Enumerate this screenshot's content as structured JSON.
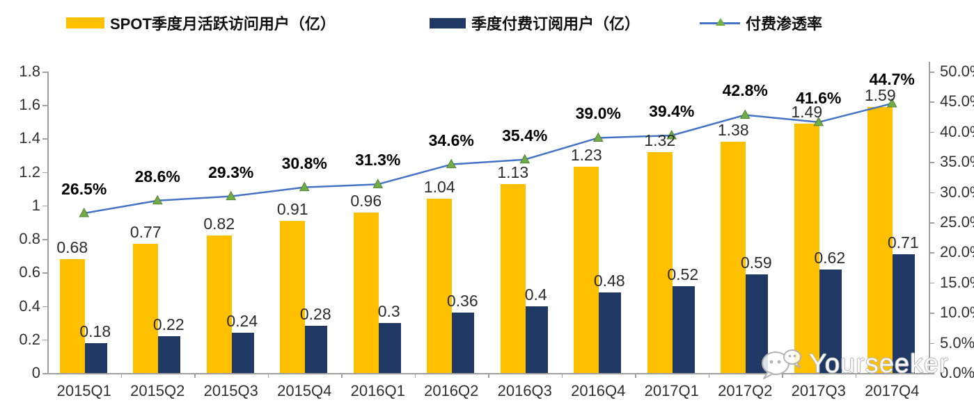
{
  "legend": {
    "mau_label": "SPOT季度月活跃访问用户（亿）",
    "subs_label": "季度付费订阅用户（亿）",
    "penetration_label": "付费渗透率"
  },
  "colors": {
    "mau_bar": "#FFC000",
    "subs_bar": "#1F3864",
    "line": "#4472C4",
    "marker_fill": "#70AD47",
    "marker_stroke": "#538135",
    "axis": "#9e9e9e"
  },
  "watermark": {
    "text": "Yourseeker",
    "icon": "wechat-icon"
  },
  "chart_data": {
    "type": "bar",
    "subtype": "combo-bar-line",
    "categories": [
      "2015Q1",
      "2015Q2",
      "2015Q3",
      "2015Q4",
      "2016Q1",
      "2016Q2",
      "2016Q3",
      "2016Q4",
      "2017Q1",
      "2017Q2",
      "2017Q3",
      "2017Q4"
    ],
    "series": [
      {
        "name": "SPOT季度月活跃访问用户（亿）",
        "type": "bar",
        "axis": "left",
        "values": [
          0.68,
          0.77,
          0.82,
          0.91,
          0.96,
          1.04,
          1.13,
          1.23,
          1.32,
          1.38,
          1.49,
          1.59
        ],
        "labels": [
          "0.68",
          "0.77",
          "0.82",
          "0.91",
          "0.96",
          "1.04",
          "1.13",
          "1.23",
          "1.32",
          "1.38",
          "1.49",
          "1.59"
        ]
      },
      {
        "name": "季度付费订阅用户（亿）",
        "type": "bar",
        "axis": "left",
        "values": [
          0.18,
          0.22,
          0.24,
          0.28,
          0.3,
          0.36,
          0.4,
          0.48,
          0.52,
          0.59,
          0.62,
          0.71
        ],
        "labels": [
          "0.18",
          "0.22",
          "0.24",
          "0.28",
          "0.3",
          "0.36",
          "0.4",
          "0.48",
          "0.52",
          "0.59",
          "0.62",
          "0.71"
        ]
      },
      {
        "name": "付费渗透率",
        "type": "line",
        "axis": "right",
        "values": [
          26.5,
          28.6,
          29.3,
          30.8,
          31.3,
          34.6,
          35.4,
          39.0,
          39.4,
          42.8,
          41.6,
          44.7
        ],
        "labels": [
          "26.5%",
          "28.6%",
          "29.3%",
          "30.8%",
          "31.3%",
          "34.6%",
          "35.4%",
          "39.0%",
          "39.4%",
          "42.8%",
          "41.6%",
          "44.7%"
        ]
      }
    ],
    "left_axis": {
      "min": 0,
      "max": 1.8,
      "ticks": [
        "0",
        "0.2",
        "0.4",
        "0.6",
        "0.8",
        "1",
        "1.2",
        "1.4",
        "1.6",
        "1.8"
      ]
    },
    "right_axis": {
      "min": 0,
      "max": 50,
      "ticks": [
        "0.0%",
        "5.0%",
        "10.0%",
        "15.0%",
        "20.0%",
        "25.0%",
        "30.0%",
        "35.0%",
        "40.0%",
        "45.0%",
        "50.0%"
      ]
    },
    "grid": false,
    "legend_position": "top",
    "title": ""
  }
}
